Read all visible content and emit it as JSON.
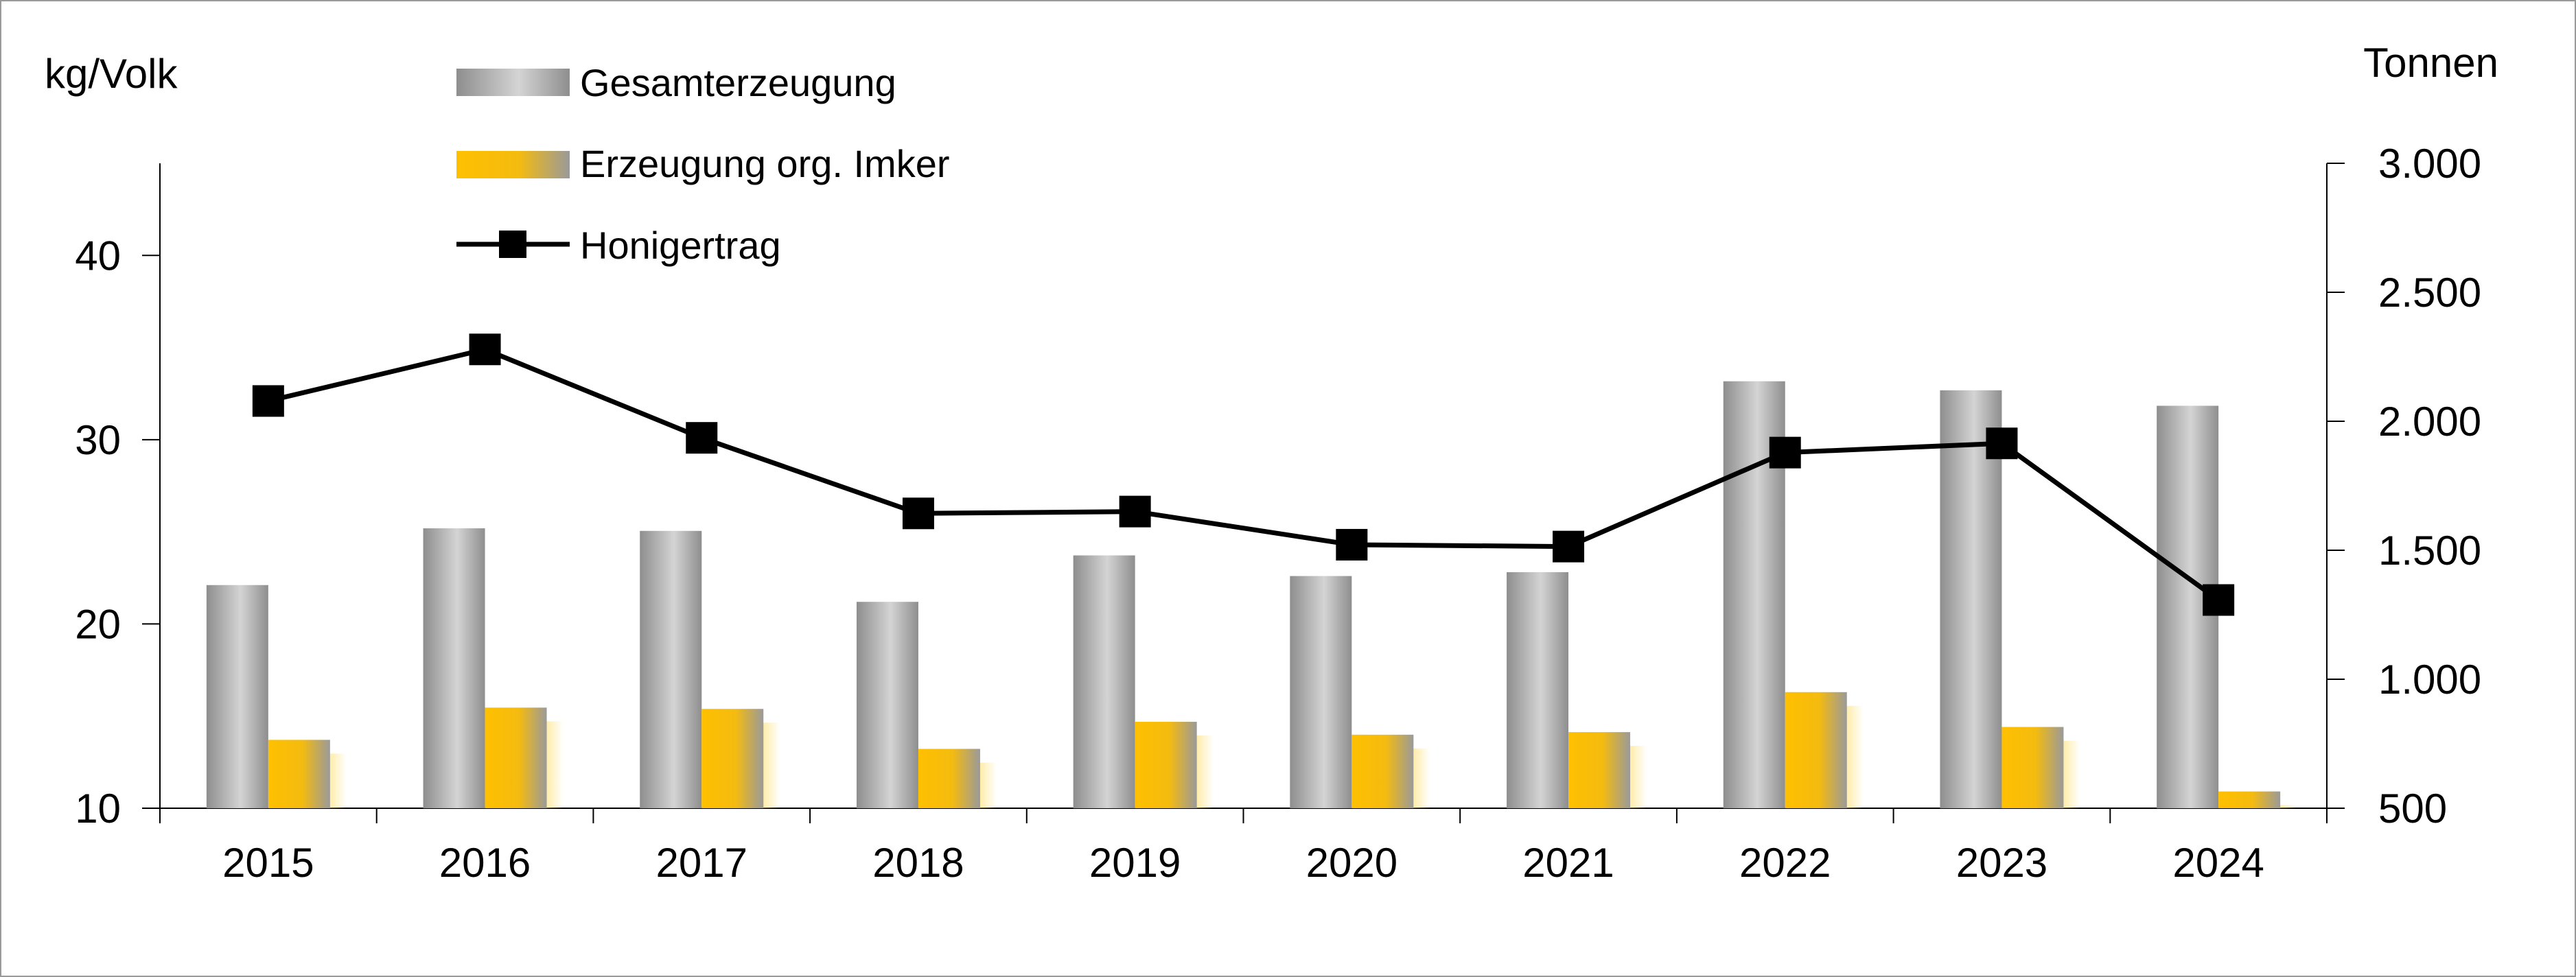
{
  "chart_data": {
    "type": "bar",
    "categories": [
      "2015",
      "2016",
      "2017",
      "2018",
      "2019",
      "2020",
      "2021",
      "2022",
      "2023",
      "2024"
    ],
    "series": [
      {
        "name": "Gesamterzeugung",
        "type": "bar",
        "axis": "right",
        "unit": "Tonnen",
        "values": [
          1365,
          1585,
          1575,
          1300,
          1480,
          1400,
          1415,
          2155,
          2120,
          2060
        ]
      },
      {
        "name": "Erzeugung org. Imker",
        "type": "bar",
        "axis": "right",
        "unit": "Tonnen",
        "values": [
          765,
          890,
          885,
          730,
          835,
          785,
          795,
          950,
          815,
          565
        ]
      },
      {
        "name": "Honigertrag",
        "type": "line",
        "axis": "left",
        "unit": "kg/Volk",
        "values": [
          32.1,
          34.9,
          30.1,
          26.0,
          26.1,
          24.3,
          24.2,
          29.3,
          29.8,
          21.3
        ]
      }
    ],
    "left_axis": {
      "label": "kg/Volk",
      "ylim": [
        10,
        45
      ],
      "ticks": [
        10,
        20,
        30,
        40
      ],
      "tick_labels": [
        "10",
        "20",
        "30",
        "40"
      ]
    },
    "right_axis": {
      "label": "Tonnen",
      "ylim": [
        500,
        3000
      ],
      "ticks": [
        500,
        1000,
        1500,
        2000,
        2500,
        3000
      ],
      "tick_labels": [
        "500",
        "1.000",
        "1.500",
        "2.000",
        "2.500",
        "3.000"
      ]
    },
    "grid": false,
    "legend_position": "top-left",
    "colors": {
      "gesamt_dark": "#8e8e8e",
      "gesamt_light": "#d2d2d2",
      "organic_bright": "#ffc000",
      "organic_muted": "#9a9a9a",
      "line": "#000000",
      "frame": "#9a9a9a"
    }
  }
}
